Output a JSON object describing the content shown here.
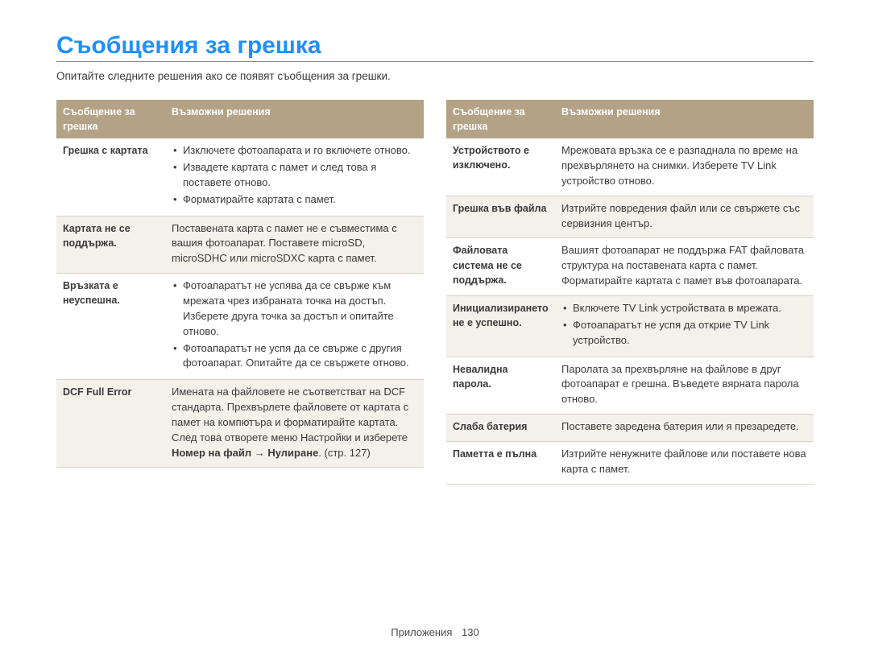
{
  "page": {
    "title": "Съобщения за грешка",
    "subtitle": "Опитайте следните решения ако се появят съобщения за грешки.",
    "footer_label": "Приложения",
    "footer_page": "130"
  },
  "colors": {
    "title": "#1e90ff",
    "header_bg": "#b3a286",
    "header_fg": "#ffffff",
    "row_shade": "#f4f1ea",
    "border": "#d8d2c3",
    "text": "#3a3a3a"
  },
  "headers": {
    "error": "Съобщение за грешка",
    "solution": "Възможни решения"
  },
  "left_rows": [
    {
      "shaded": false,
      "label": "Грешка с картата",
      "type": "list",
      "items": [
        "Изключете фотоапарата и го включете отново.",
        "Извадете картата с памет и след това я поставете отново.",
        "Форматирайте картата с памет."
      ]
    },
    {
      "shaded": true,
      "label": "Картата не се поддържа.",
      "type": "text",
      "text": "Поставената карта с памет не е съвместима с вашия фотоапарат. Поставете microSD, microSDHC или microSDXC карта с памет."
    },
    {
      "shaded": false,
      "label": "Връзката е неуспешна.",
      "type": "list",
      "items": [
        "Фотоапаратът не успява да се свърже към мрежата чрез избраната точка на достъп. Изберете друга точка за достъп и опитайте отново.",
        "Фотоапаратът не успя да се свърже с другия фотоапарат. Опитайте да се свържете отново."
      ]
    },
    {
      "shaded": true,
      "label": "DCF Full Error",
      "type": "rich",
      "pre": "Имената на файловете не съответстват на DCF стандарта. Прехвърлете файловете от картата с памет на компютъра и форматирайте картата. След това отворете меню Настройки и изберете ",
      "bold1": "Номер на файл",
      "mid": " → ",
      "bold2": "Нулиране",
      "post": ". (стр. 127)"
    }
  ],
  "right_rows": [
    {
      "shaded": false,
      "label": "Устройството е изключено.",
      "type": "text",
      "text": "Мрежовата връзка се е разпаднала по време на прехвърлянето на снимки. Изберете TV Link устройство отново."
    },
    {
      "shaded": true,
      "label": "Грешка във файла",
      "type": "text",
      "text": "Изтрийте повредения файл или се свържете със сервизния център."
    },
    {
      "shaded": false,
      "label": "Файловата система не се поддържа.",
      "type": "text",
      "text": "Вашият фотоапарат не поддържа FAT файловата структура на поставената карта с памет. Форматирайте картата с памет във фотоапарата."
    },
    {
      "shaded": true,
      "label": "Инициализирането не е успешно.",
      "type": "list",
      "items": [
        "Включете TV Link устройствата в мрежата.",
        "Фотоапаратът не успя да открие TV Link устройство."
      ]
    },
    {
      "shaded": false,
      "label": "Невалидна парола.",
      "type": "text",
      "text": "Паролата за прехвърляне на файлове в друг фотоапарат е грешна. Въведете вярната парола отново."
    },
    {
      "shaded": true,
      "label": "Слаба батерия",
      "type": "text",
      "text": "Поставете заредена батерия или я презаредете."
    },
    {
      "shaded": false,
      "label": "Паметта е пълна",
      "type": "text",
      "text": "Изтрийте ненужните файлове или поставете нова карта с памет."
    }
  ]
}
